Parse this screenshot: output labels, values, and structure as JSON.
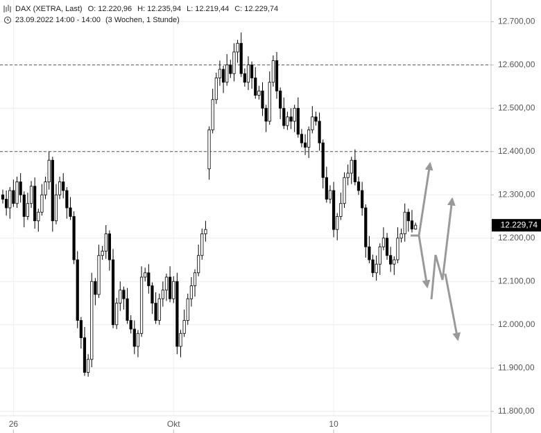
{
  "header": {
    "symbol": "DAX (XETRA, Last)",
    "ohlc": [
      {
        "key": "O:",
        "value": "12.220,96"
      },
      {
        "key": "H:",
        "value": "12.235,94"
      },
      {
        "key": "L:",
        "value": "12.219,44"
      },
      {
        "key": "C:",
        "value": "12.229,74"
      }
    ],
    "date": "23.09.2022 14:00 - 14:00",
    "range": "(3 Wochen, 1 Stunde)"
  },
  "chart_data": {
    "type": "candlestick",
    "categories": [
      null,
      null,
      null,
      "26",
      null,
      null,
      null,
      null,
      null,
      null,
      null,
      null,
      null,
      null,
      null,
      null,
      null,
      null,
      null,
      null,
      null,
      null,
      null,
      null,
      null,
      null,
      null,
      null,
      null,
      null,
      null,
      null,
      null,
      null,
      null,
      null,
      null,
      null,
      null,
      null,
      null,
      null,
      null,
      null,
      null,
      null,
      null,
      null,
      "Okt",
      null,
      null,
      null,
      null,
      null,
      null,
      null,
      null,
      null,
      null,
      null,
      null,
      null,
      null,
      null,
      null,
      null,
      null,
      null,
      null,
      null,
      null,
      null,
      null,
      null,
      null,
      null,
      null,
      null,
      null,
      null,
      null,
      null,
      null,
      null,
      null,
      null,
      null,
      null,
      null,
      null,
      null,
      null,
      null,
      "10",
      null,
      null,
      null,
      null,
      null,
      null,
      null,
      null,
      null,
      null,
      null,
      null,
      null,
      null,
      null,
      null,
      null,
      null,
      null,
      null,
      null,
      null,
      null
    ],
    "open": [
      12300,
      12290,
      12270,
      12310,
      12280,
      12330,
      12300,
      12250,
      12280,
      12320,
      12240,
      12260,
      12300,
      12330,
      12380,
      12240,
      12300,
      12330,
      12310,
      12270,
      12250,
      12150,
      12010,
      11970,
      11890,
      11920,
      12100,
      12070,
      12160,
      12170,
      12210,
      12150,
      12000,
      12050,
      12080,
      12060,
      12010,
      11990,
      11950,
      11980,
      12110,
      12120,
      12090,
      12050,
      12010,
      12060,
      12080,
      12110,
      12060,
      12100,
      11950,
      11980,
      12010,
      12060,
      12090,
      12120,
      12160,
      12210,
      12360,
      12450,
      12520,
      12570,
      12590,
      12560,
      12600,
      12580,
      12630,
      12650,
      12580,
      12560,
      12600,
      12570,
      12530,
      12540,
      12500,
      12470,
      12560,
      12610,
      12540,
      12500,
      12460,
      12480,
      12470,
      12500,
      12440,
      12420,
      12410,
      12450,
      12480,
      12470,
      12420,
      12340,
      12290,
      12310,
      12220,
      12250,
      12280,
      12340,
      12350,
      12380,
      12330,
      12310,
      12270,
      12180,
      12150,
      12120,
      12140,
      12180,
      12200,
      12160,
      12140,
      12150,
      12200,
      12210,
      12260,
      12240,
      12220.96
    ],
    "high": [
      12312,
      12310,
      12318,
      12335,
      12342,
      12350,
      12308,
      12305,
      12332,
      12340,
      12268,
      12325,
      12342,
      12400,
      12388,
      12325,
      12342,
      12350,
      12318,
      12295,
      12262,
      12170,
      12018,
      11995,
      11932,
      12120,
      12108,
      12185,
      12182,
      12230,
      12218,
      12175,
      12062,
      12100,
      12088,
      12085,
      12022,
      12010,
      11988,
      12135,
      12132,
      12140,
      12098,
      12075,
      12072,
      12100,
      12118,
      12135,
      12112,
      12120,
      11988,
      12035,
      12072,
      12110,
      12128,
      12185,
      12222,
      12240,
      12458,
      12545,
      12582,
      12610,
      12598,
      12625,
      12612,
      12650,
      12658,
      12675,
      12592,
      12620,
      12608,
      12595,
      12552,
      12560,
      12508,
      12585,
      12622,
      12630,
      12548,
      12525,
      12492,
      12500,
      12508,
      12525,
      12452,
      12440,
      12458,
      12505,
      12492,
      12490,
      12428,
      12365,
      12322,
      12330,
      12258,
      12305,
      12352,
      12370,
      12388,
      12405,
      12342,
      12330,
      12278,
      12205,
      12162,
      12160,
      12188,
      12225,
      12212,
      12180,
      12158,
      12225,
      12222,
      12280,
      12268,
      12265,
      12235.94
    ],
    "low": [
      12280,
      12252,
      12245,
      12272,
      12270,
      12282,
      12225,
      12242,
      12270,
      12222,
      12215,
      12252,
      12290,
      12312,
      12215,
      12232,
      12290,
      12292,
      12245,
      12242,
      12140,
      11992,
      11945,
      11882,
      11880,
      11902,
      12045,
      12062,
      12150,
      12152,
      12125,
      11992,
      11990,
      12032,
      12035,
      12002,
      11980,
      11932,
      11925,
      11972,
      12100,
      12072,
      12025,
      12002,
      12000,
      12042,
      12055,
      12052,
      12050,
      11932,
      11925,
      11972,
      12000,
      12042,
      12065,
      12112,
      12150,
      12192,
      12335,
      12442,
      12510,
      12552,
      12535,
      12552,
      12570,
      12562,
      12605,
      12572,
      12550,
      12542,
      12545,
      12522,
      12520,
      12482,
      12445,
      12462,
      12550,
      12522,
      12475,
      12452,
      12450,
      12452,
      12445,
      12432,
      12410,
      12392,
      12385,
      12442,
      12460,
      12402,
      12315,
      12282,
      12280,
      12202,
      12195,
      12242,
      12270,
      12322,
      12325,
      12322,
      12300,
      12252,
      12155,
      12142,
      12110,
      12102,
      12115,
      12172,
      12150,
      12122,
      12115,
      12142,
      12190,
      12192,
      12215,
      12213,
      12219.44
    ],
    "close": [
      12290,
      12270,
      12310,
      12280,
      12330,
      12300,
      12250,
      12280,
      12320,
      12240,
      12260,
      12300,
      12330,
      12380,
      12240,
      12300,
      12330,
      12310,
      12270,
      12250,
      12150,
      12010,
      11970,
      11890,
      11920,
      12100,
      12070,
      12160,
      12170,
      12210,
      12150,
      12000,
      12050,
      12080,
      12060,
      12010,
      11990,
      11950,
      11980,
      12110,
      12120,
      12090,
      12050,
      12010,
      12060,
      12080,
      12110,
      12060,
      12100,
      11950,
      11980,
      12010,
      12060,
      12090,
      12120,
      12160,
      12210,
      12220,
      12450,
      12520,
      12570,
      12590,
      12560,
      12600,
      12580,
      12630,
      12650,
      12580,
      12560,
      12600,
      12570,
      12530,
      12540,
      12500,
      12470,
      12560,
      12610,
      12540,
      12500,
      12460,
      12480,
      12470,
      12500,
      12440,
      12420,
      12410,
      12450,
      12480,
      12470,
      12420,
      12340,
      12290,
      12310,
      12220,
      12250,
      12280,
      12340,
      12350,
      12380,
      12330,
      12310,
      12270,
      12180,
      12150,
      12120,
      12140,
      12180,
      12200,
      12160,
      12140,
      12150,
      12200,
      12210,
      12260,
      12240,
      12220.96,
      12229.74
    ],
    "ylim": [
      11790,
      12750
    ],
    "yticks": [
      {
        "value": 11800,
        "label": "11.800,00"
      },
      {
        "value": 11900,
        "label": "11.900,00"
      },
      {
        "value": 12000,
        "label": "12.000,00"
      },
      {
        "value": 12100,
        "label": "12.100,00"
      },
      {
        "value": 12200,
        "label": "12.200,00"
      },
      {
        "value": 12300,
        "label": "12.300,00"
      },
      {
        "value": 12400,
        "label": "12.400,00"
      },
      {
        "value": 12500,
        "label": "12.500,00"
      },
      {
        "value": 12600,
        "label": "12.600,00"
      },
      {
        "value": 12700,
        "label": "12.700,00"
      }
    ],
    "hlines": [
      12600,
      12400
    ],
    "price_label": {
      "value": 12229.74,
      "label": "12.229,74"
    },
    "up_color": "#ffffff",
    "down_color": "#000000",
    "grid": true
  }
}
